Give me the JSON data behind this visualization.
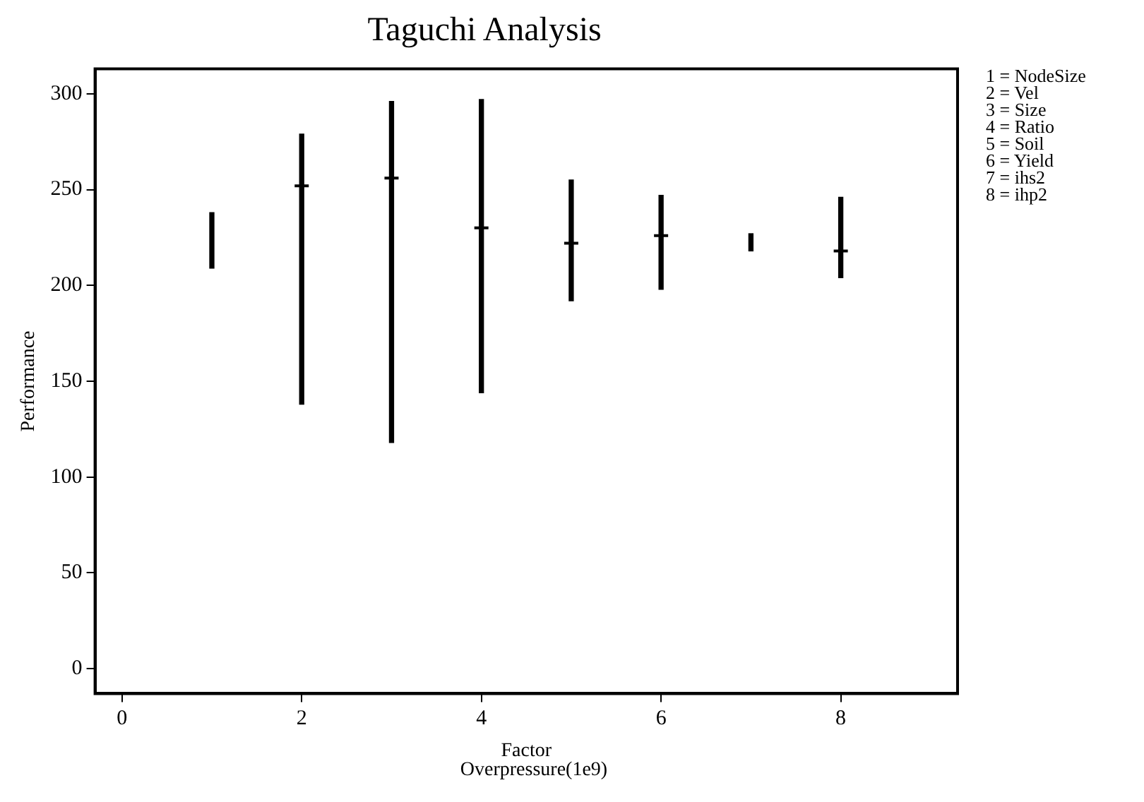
{
  "chart_data": {
    "type": "bar",
    "title": "Taguchi Analysis",
    "xlabel": "Factor",
    "ylabel": "Performance",
    "x": [
      1,
      2,
      3,
      4,
      5,
      6,
      7,
      8
    ],
    "series": [
      {
        "color": "#000000",
        "base": [
          209,
          138,
          118,
          144,
          192,
          198,
          218,
          204
        ],
        "values": [
          29,
          141,
          178,
          153,
          63,
          49,
          9,
          42
        ]
      },
      {
        "type": "scatter",
        "color": "#000000",
        "marker": "cross",
        "values": [
          null,
          252,
          256,
          230,
          222,
          226,
          null,
          218
        ]
      }
    ],
    "xlim": [
      -0.3,
      9.3
    ],
    "xticks": [
      0,
      2,
      4,
      6,
      8
    ],
    "ylim": [
      -13,
      313
    ],
    "yticks": [
      0,
      50,
      100,
      150,
      200,
      250,
      300
    ],
    "grid": false,
    "legend": false,
    "annotations": [
      "Overpressure(1e9)",
      "1 = NodeSize",
      "2 = Vel",
      "3 = Size",
      "4 = Ratio",
      "5 = Soil",
      "6 = Yield",
      "7 = ihs2",
      "8 = ihp2"
    ]
  }
}
